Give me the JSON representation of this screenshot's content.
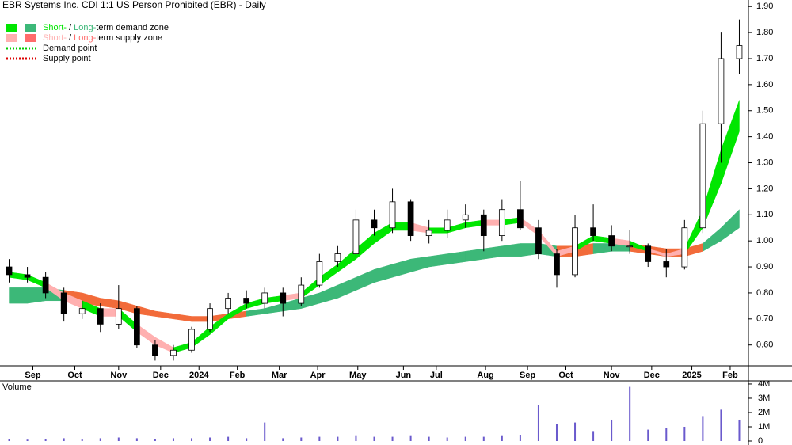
{
  "chart_data": {
    "type": "candlestick",
    "title": "EBR Systems Inc. CDI 1:1 US Person Prohibited (EBR) - Daily",
    "legend": [
      {
        "short": "Short-",
        "sep": "/",
        "long": "Long-",
        "text": "term demand zone"
      },
      {
        "short": "Short-",
        "sep": "/",
        "long": "Long-",
        "text": "term supply zone"
      },
      {
        "text": "Demand point"
      },
      {
        "text": "Supply point"
      }
    ],
    "colors": {
      "short_demand": "#00e600",
      "long_demand": "#3cb878",
      "short_supply": "#ffb0b0",
      "long_supply": "#f26b3a",
      "long_supply_swatch": "#ff6b6b",
      "demand_point": "#00cc00",
      "supply_point": "#dd0000",
      "up": "#ffffff",
      "down": "#000000",
      "volume": "#6a5acd"
    },
    "xlim": [
      -0.5,
      40.5
    ],
    "xticks": [
      {
        "value": 1.3,
        "label": "Sep"
      },
      {
        "value": 3.6,
        "label": "Oct"
      },
      {
        "value": 6.0,
        "label": "Nov"
      },
      {
        "value": 8.3,
        "label": "Dec"
      },
      {
        "value": 10.4,
        "label": "2024"
      },
      {
        "value": 12.5,
        "label": "Feb"
      },
      {
        "value": 14.8,
        "label": "Mar"
      },
      {
        "value": 16.9,
        "label": "Apr"
      },
      {
        "value": 19.1,
        "label": "May"
      },
      {
        "value": 21.6,
        "label": "Jun"
      },
      {
        "value": 23.4,
        "label": "Jul"
      },
      {
        "value": 26.1,
        "label": "Aug"
      },
      {
        "value": 28.4,
        "label": "Sep"
      },
      {
        "value": 30.5,
        "label": "Oct"
      },
      {
        "value": 33.0,
        "label": "Nov"
      },
      {
        "value": 35.2,
        "label": "Dec"
      },
      {
        "value": 37.4,
        "label": "2025"
      },
      {
        "value": 39.5,
        "label": "Feb"
      }
    ],
    "ylim": [
      0.52,
      1.925
    ],
    "yticks": [
      {
        "value": 1.9,
        "label": "1.90"
      },
      {
        "value": 1.8,
        "label": "1.80"
      },
      {
        "value": 1.7,
        "label": "1.70"
      },
      {
        "value": 1.6,
        "label": "1.60"
      },
      {
        "value": 1.5,
        "label": "1.50"
      },
      {
        "value": 1.4,
        "label": "1.40"
      },
      {
        "value": 1.3,
        "label": "1.30"
      },
      {
        "value": 1.2,
        "label": "1.20"
      },
      {
        "value": 1.1,
        "label": "1.10"
      },
      {
        "value": 1.0,
        "label": "1.00"
      },
      {
        "value": 0.9,
        "label": "0.90"
      },
      {
        "value": 0.8,
        "label": "0.80"
      },
      {
        "value": 0.7,
        "label": "0.70"
      },
      {
        "value": 0.6,
        "label": "0.60"
      }
    ],
    "open": [
      0.9,
      0.87,
      0.86,
      0.8,
      0.72,
      0.74,
      0.68,
      0.74,
      0.6,
      0.56,
      0.58,
      0.66,
      0.74,
      0.78,
      0.76,
      0.8,
      0.76,
      0.83,
      0.92,
      0.95,
      1.08,
      1.05,
      1.15,
      1.02,
      1.04,
      1.08,
      1.1,
      1.02,
      1.12,
      1.05,
      0.95,
      0.87,
      1.05,
      1.02,
      0.98,
      0.98,
      0.92,
      0.9,
      1.05,
      1.45,
      1.7
    ],
    "high": [
      0.93,
      0.9,
      0.88,
      0.82,
      0.77,
      0.76,
      0.83,
      0.75,
      0.62,
      0.6,
      0.67,
      0.76,
      0.8,
      0.81,
      0.82,
      0.82,
      0.86,
      0.95,
      0.98,
      1.12,
      1.12,
      1.2,
      1.16,
      1.08,
      1.12,
      1.14,
      1.12,
      1.16,
      1.23,
      1.08,
      0.97,
      1.1,
      1.14,
      1.06,
      1.04,
      0.99,
      0.97,
      1.08,
      1.5,
      1.8,
      1.85
    ],
    "low": [
      0.84,
      0.84,
      0.78,
      0.69,
      0.7,
      0.65,
      0.66,
      0.59,
      0.54,
      0.54,
      0.57,
      0.65,
      0.72,
      0.74,
      0.74,
      0.71,
      0.75,
      0.82,
      0.9,
      0.94,
      1.02,
      1.03,
      1.0,
      0.99,
      1.01,
      1.05,
      0.96,
      1.0,
      1.04,
      0.93,
      0.82,
      0.86,
      1.0,
      0.96,
      0.95,
      0.9,
      0.86,
      0.89,
      1.03,
      1.3,
      1.64
    ],
    "close": [
      0.87,
      0.86,
      0.8,
      0.72,
      0.74,
      0.68,
      0.74,
      0.6,
      0.56,
      0.58,
      0.66,
      0.74,
      0.78,
      0.76,
      0.8,
      0.76,
      0.83,
      0.92,
      0.95,
      1.08,
      1.05,
      1.15,
      1.02,
      1.04,
      1.08,
      1.1,
      1.02,
      1.12,
      1.05,
      0.95,
      0.87,
      1.05,
      1.02,
      0.98,
      0.98,
      0.92,
      0.9,
      1.05,
      1.45,
      1.7,
      1.75
    ],
    "st_upper": [
      0.88,
      0.87,
      0.84,
      0.8,
      0.77,
      0.74,
      0.74,
      0.68,
      0.63,
      0.59,
      0.61,
      0.67,
      0.72,
      0.76,
      0.78,
      0.79,
      0.8,
      0.86,
      0.91,
      0.97,
      1.03,
      1.07,
      1.07,
      1.05,
      1.05,
      1.07,
      1.08,
      1.08,
      1.09,
      1.04,
      0.96,
      0.98,
      1.02,
      1.01,
      1.0,
      0.97,
      0.95,
      0.97,
      1.12,
      1.35,
      1.54
    ],
    "st_lower": [
      0.86,
      0.85,
      0.82,
      0.77,
      0.74,
      0.71,
      0.71,
      0.65,
      0.6,
      0.57,
      0.59,
      0.64,
      0.7,
      0.74,
      0.76,
      0.77,
      0.78,
      0.83,
      0.88,
      0.93,
      0.99,
      1.04,
      1.04,
      1.03,
      1.03,
      1.05,
      1.06,
      1.06,
      1.07,
      1.02,
      0.94,
      0.96,
      1.0,
      0.99,
      0.98,
      0.96,
      0.94,
      0.95,
      1.05,
      1.22,
      1.42
    ],
    "lt_upper": [
      0.82,
      0.82,
      0.82,
      0.81,
      0.8,
      0.78,
      0.77,
      0.75,
      0.73,
      0.72,
      0.71,
      0.71,
      0.72,
      0.73,
      0.74,
      0.76,
      0.78,
      0.8,
      0.83,
      0.86,
      0.89,
      0.91,
      0.93,
      0.94,
      0.95,
      0.96,
      0.97,
      0.98,
      0.99,
      0.99,
      0.98,
      0.98,
      0.99,
      0.99,
      0.99,
      0.98,
      0.97,
      0.97,
      0.99,
      1.05,
      1.12
    ],
    "lt_lower": [
      0.76,
      0.76,
      0.77,
      0.77,
      0.76,
      0.75,
      0.74,
      0.72,
      0.71,
      0.7,
      0.69,
      0.69,
      0.7,
      0.71,
      0.72,
      0.73,
      0.74,
      0.76,
      0.78,
      0.81,
      0.84,
      0.86,
      0.88,
      0.9,
      0.91,
      0.92,
      0.93,
      0.94,
      0.94,
      0.95,
      0.94,
      0.94,
      0.95,
      0.96,
      0.96,
      0.95,
      0.94,
      0.94,
      0.96,
      1.0,
      1.05
    ],
    "volume_label": "Volume",
    "volume": [
      0.15,
      0.1,
      0.15,
      0.2,
      0.15,
      0.2,
      0.25,
      0.2,
      0.15,
      0.2,
      0.2,
      0.25,
      0.3,
      0.2,
      1.3,
      0.2,
      0.25,
      0.3,
      0.3,
      0.35,
      0.3,
      0.3,
      0.35,
      0.3,
      0.25,
      0.3,
      0.3,
      0.35,
      0.4,
      2.5,
      1.2,
      1.3,
      0.7,
      1.5,
      3.8,
      0.8,
      0.9,
      1.0,
      1.7,
      2.2,
      1.5
    ],
    "vlim": [
      0,
      4.22
    ],
    "vticks": [
      {
        "value": 4,
        "label": "4M"
      },
      {
        "value": 3,
        "label": "3M"
      },
      {
        "value": 2,
        "label": "2M"
      },
      {
        "value": 1,
        "label": "1M"
      },
      0
    ]
  }
}
